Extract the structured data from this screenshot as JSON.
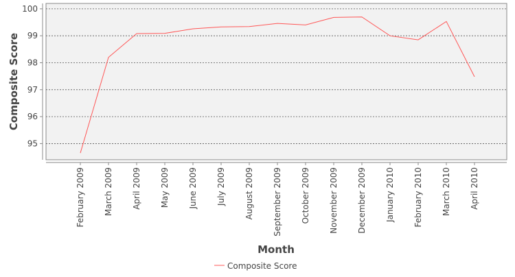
{
  "chart_data": {
    "type": "line",
    "title": "",
    "xlabel": "Month",
    "ylabel": "Composite Score",
    "categories": [
      "February 2009",
      "March 2009",
      "April 2009",
      "May 2009",
      "June 2009",
      "July 2009",
      "August 2009",
      "September 2009",
      "October 2009",
      "November 2009",
      "December 2009",
      "January 2010",
      "February 2010",
      "March 2010",
      "April 2010"
    ],
    "series": [
      {
        "name": "Composite Score",
        "color": "#ff5555",
        "values": [
          94.65,
          98.2,
          99.08,
          99.09,
          99.26,
          99.33,
          99.34,
          99.46,
          99.4,
          99.68,
          99.7,
          99.0,
          98.85,
          99.53,
          97.48
        ]
      }
    ],
    "yticks": [
      95,
      96,
      97,
      98,
      99,
      100
    ],
    "ylim": [
      94.4,
      100.2
    ],
    "grid": true,
    "legend_position": "bottom-center",
    "plot_background": "#f2f2f2"
  }
}
